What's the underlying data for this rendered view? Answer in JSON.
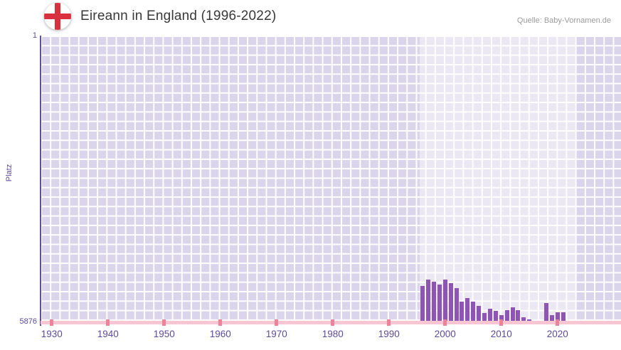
{
  "header": {
    "title": "Eireann in England (1996-2022)",
    "source": "Quelle: Baby-Vornamen.de",
    "flag_icon": "england-flag-icon"
  },
  "chart_data": {
    "type": "bar",
    "title": "Eireann in England (1996-2022)",
    "xlabel": "",
    "ylabel": "Platz",
    "y_axis": {
      "top_tick_label": "1",
      "bottom_tick_label": "5876"
    },
    "y_domain": [
      1,
      5876
    ],
    "y_inverted": true,
    "x_domain": [
      1928,
      2031.3
    ],
    "x_tick_years": [
      1930,
      1940,
      1950,
      1960,
      1970,
      1980,
      1990,
      2000,
      2010,
      2020
    ],
    "highlight_year_range": [
      1995.5,
      2023.2
    ],
    "grid": true,
    "legend": "none",
    "series": [
      {
        "name": "Platz",
        "years": [
          1996,
          1997,
          1998,
          1999,
          2000,
          2001,
          2002,
          2003,
          2004,
          2005,
          2006,
          2007,
          2008,
          2009,
          2010,
          2011,
          2012,
          2013,
          2014,
          2015,
          2016,
          2017,
          2018,
          2019,
          2020,
          2021,
          2022
        ],
        "values": [
          5140,
          5010,
          5060,
          5120,
          5020,
          5080,
          5190,
          5470,
          5390,
          5470,
          5550,
          5700,
          5610,
          5660,
          5740,
          5640,
          5580,
          5640,
          5790,
          5830,
          null,
          null,
          5500,
          5740,
          5680,
          5680,
          null
        ]
      }
    ],
    "colors": {
      "bar": "#8f55b4",
      "plot_background": "#dbd5ec",
      "grid_line": "#ffffff",
      "highlight_band": "rgba(255,255,255,0.45)",
      "y_axis_line": "#5e4da0",
      "x_axis_line": "#f8c6d3",
      "x_axis_tick": "#ee829b",
      "axis_text": "#5c4b9b",
      "title_text": "#383838",
      "source_text": "#9b9b9b",
      "flag_cross": "#d8303f"
    }
  }
}
